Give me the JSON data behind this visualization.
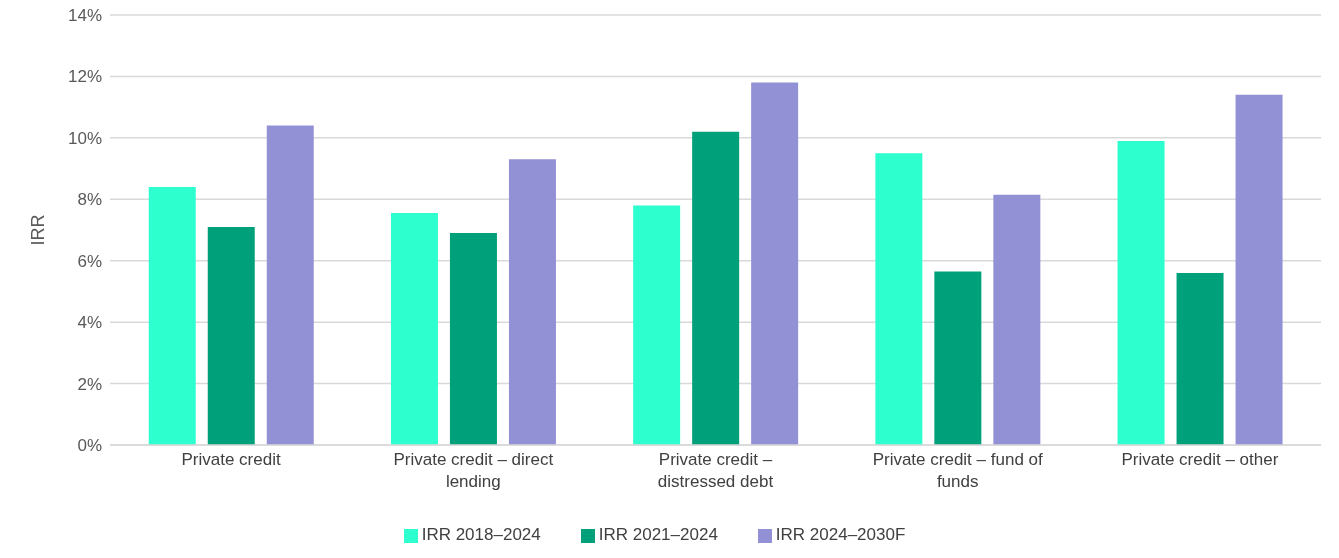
{
  "chart_data": {
    "type": "bar",
    "ylabel": "IRR",
    "categories": [
      "Private credit",
      "Private credit – direct lending",
      "Private credit – distressed debt",
      "Private credit – fund of funds",
      "Private credit – other"
    ],
    "series": [
      {
        "name": "IRR 2018–2024",
        "color": "#2dffcf",
        "values": [
          8.4,
          7.55,
          7.8,
          9.5,
          9.9
        ]
      },
      {
        "name": "IRR 2021–2024",
        "color": "#00a07b",
        "values": [
          7.1,
          6.9,
          10.2,
          5.65,
          5.6
        ]
      },
      {
        "name": "IRR 2024–2030F",
        "color": "#9391d5",
        "values": [
          10.4,
          9.3,
          11.8,
          8.15,
          11.4
        ]
      }
    ],
    "ylim": [
      0,
      14
    ],
    "yticks": [
      {
        "value": 0,
        "label": "0%"
      },
      {
        "value": 2,
        "label": "2%"
      },
      {
        "value": 4,
        "label": "4%"
      },
      {
        "value": 6,
        "label": "6%"
      },
      {
        "value": 8,
        "label": "8%"
      },
      {
        "value": 10,
        "label": "10%"
      },
      {
        "value": 12,
        "label": "12%"
      },
      {
        "value": 14,
        "label": "14%"
      }
    ],
    "grid": "y",
    "legend": "bottom"
  }
}
